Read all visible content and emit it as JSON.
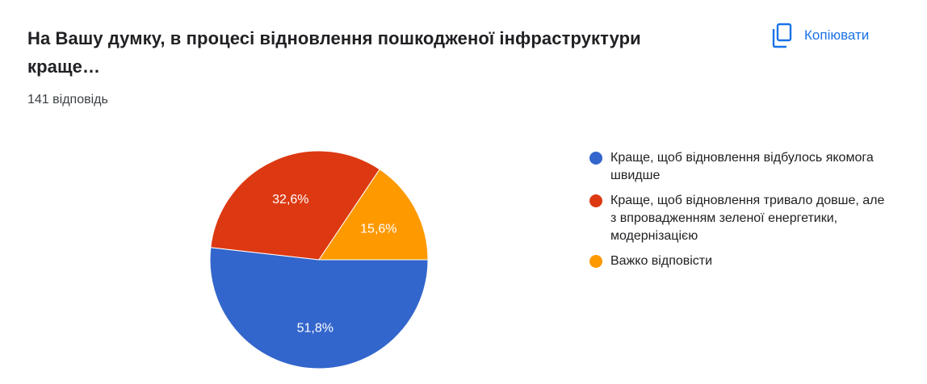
{
  "card": {
    "title": "На Вашу думку, в процесі відновлення пошкодженої інфраструктури\nкраще…",
    "response_count": "141 відповідь",
    "copy_label": "Копіювати",
    "copy_icon": "copy-icon",
    "accent_color": "#1a73e8"
  },
  "chart_data": {
    "type": "pie",
    "title": "",
    "legend_position": "right",
    "slices": [
      {
        "label": "Краще, щоб відновлення відбулось якомога швидше",
        "value": 51.8,
        "display": "51,8%",
        "color": "#3366cc"
      },
      {
        "label": "Краще, щоб відновлення тривало довше, але з впровадженням зеленої енергетики, модернізацією",
        "value": 32.6,
        "display": "32,6%",
        "color": "#dc3912"
      },
      {
        "label": "Важко відповісти",
        "value": 15.6,
        "display": "15,6%",
        "color": "#ff9900"
      }
    ]
  }
}
